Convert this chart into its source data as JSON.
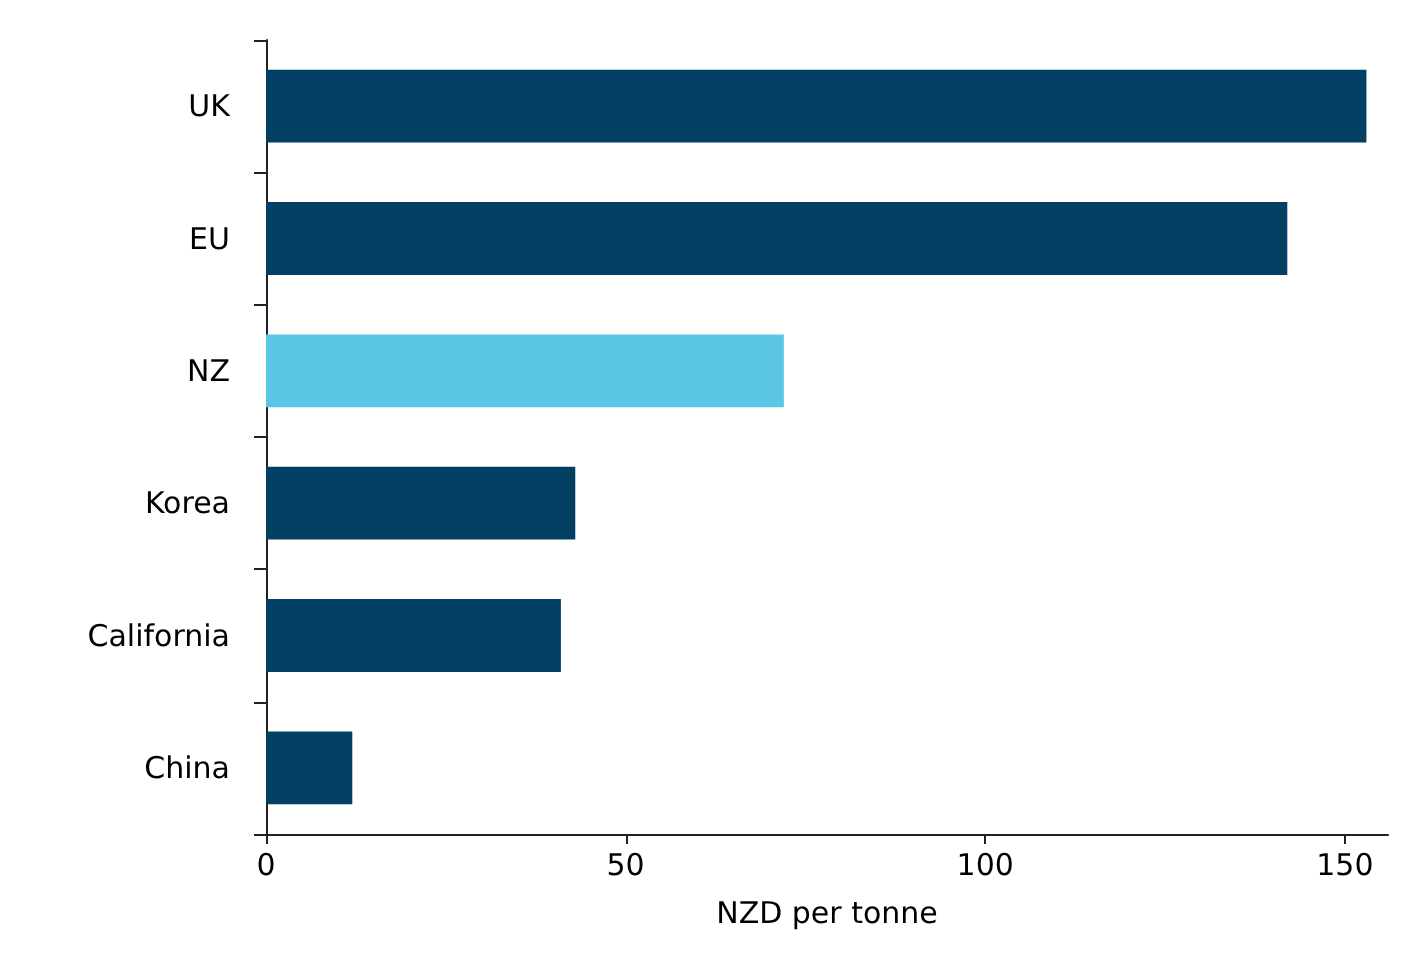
{
  "chart_data": {
    "type": "bar",
    "orientation": "horizontal",
    "xlabel": "NZD per tonne",
    "categories": [
      "UK",
      "EU",
      "NZ",
      "Korea",
      "California",
      "China"
    ],
    "values": [
      153,
      142,
      72,
      43,
      41,
      12
    ],
    "colors": [
      "#023f63",
      "#023f63",
      "#5bc5e6",
      "#023f63",
      "#023f63",
      "#023f63"
    ],
    "xlim": [
      0,
      156
    ],
    "xticks": [
      0,
      50,
      100,
      150
    ],
    "grid": false
  }
}
